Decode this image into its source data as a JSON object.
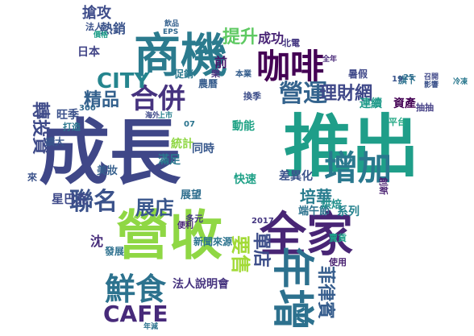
{
  "words": [
    {
      "text": "成長",
      "color": "#3f4788"
    },
    {
      "text": "推出",
      "color": "#1f9e89"
    },
    {
      "text": "商機",
      "color": "#2b7b8e"
    },
    {
      "text": "營收",
      "color": "#8fd744"
    },
    {
      "text": "全家",
      "color": "#482575"
    },
    {
      "text": "增加",
      "color": "#2a788e"
    },
    {
      "text": "年增",
      "color": "#2d718e"
    },
    {
      "text": "咖啡",
      "color": "#440154"
    },
    {
      "text": "聯名",
      "color": "#3b528b"
    },
    {
      "text": "鮮食",
      "color": "#2c728e"
    },
    {
      "text": "合併",
      "color": "#46337f"
    },
    {
      "text": "營運",
      "color": "#33638d"
    },
    {
      "text": "CITY",
      "color": "#25858e"
    },
    {
      "text": "CAFE",
      "color": "#472a7a"
    },
    {
      "text": "提升",
      "color": "#5ec962"
    },
    {
      "text": "理財網",
      "color": "#3f4889"
    },
    {
      "text": "精品",
      "color": "#34618d"
    },
    {
      "text": "展店",
      "color": "#39568c"
    },
    {
      "text": "轉投資",
      "color": "#3e4a89"
    },
    {
      "text": "單店",
      "color": "#3d4e8a"
    },
    {
      "text": "要售",
      "color": "#a2da37"
    },
    {
      "text": "菲律賓",
      "color": "#365d8d"
    },
    {
      "text": "搶攻",
      "color": "#3e4c8a"
    },
    {
      "text": "培華",
      "color": "#287c8e"
    },
    {
      "text": "成功",
      "color": "#482475"
    },
    {
      "text": "熱銷",
      "color": "#3a538b"
    },
    {
      "text": "星巴克",
      "color": "#3e4989"
    },
    {
      "text": "法人說明會",
      "color": "#46337f"
    },
    {
      "text": "新聞來源",
      "color": "#2c738e"
    },
    {
      "text": "資產",
      "color": "#440154"
    },
    {
      "text": "統計",
      "color": "#8fd744"
    },
    {
      "text": "同時",
      "color": "#38588c"
    },
    {
      "text": "快速",
      "color": "#1fa187"
    },
    {
      "text": "差異化",
      "color": "#3b528b"
    },
    {
      "text": "展望",
      "color": "#2e6e8e"
    },
    {
      "text": "動能",
      "color": "#20a386"
    },
    {
      "text": "連續",
      "color": "#1f9a8a"
    },
    {
      "text": "農曆",
      "color": "#365c8d"
    },
    {
      "text": "系列",
      "color": "#26828e"
    },
    {
      "text": "端午節",
      "color": "#2c728e"
    },
    {
      "text": "烘焙",
      "color": "#21908d"
    },
    {
      "text": "旺季",
      "color": "#3b518b"
    },
    {
      "text": "滿足",
      "color": "#2a778e"
    },
    {
      "text": "日本",
      "color": "#414487"
    },
    {
      "text": "前",
      "color": "#48186a"
    },
    {
      "text": "暑假",
      "color": "#3f4889"
    },
    {
      "text": "北電",
      "color": "#453882"
    },
    {
      "text": "美妝",
      "color": "#355f8d"
    },
    {
      "text": "抽抽",
      "color": "#433e85"
    },
    {
      "text": "旗下",
      "color": "#2c728e"
    },
    {
      "text": "促銷",
      "color": "#2a788e"
    },
    {
      "text": "法人",
      "color": "#3b528b"
    },
    {
      "text": "擴大",
      "color": "#39568c"
    },
    {
      "text": "多元",
      "color": "#453882"
    },
    {
      "text": "沈",
      "color": "#472d7b"
    },
    {
      "text": "賣貨",
      "color": "#1f9e89"
    },
    {
      "text": "發展",
      "color": "#2d708e"
    },
    {
      "text": "打造",
      "color": "#2a768e"
    },
    {
      "text": "便利",
      "color": "#482576"
    },
    {
      "text": "平台",
      "color": "#22a884"
    },
    {
      "text": "創新",
      "color": "#481f70"
    },
    {
      "text": "換季",
      "color": "#3d4e8a"
    },
    {
      "text": "300",
      "color": "#31688e"
    },
    {
      "text": "25",
      "color": "#2e6d8e"
    },
    {
      "text": "19",
      "color": "#3a548c"
    },
    {
      "text": "2017",
      "color": "#453781"
    },
    {
      "text": "07",
      "color": "#2b748e"
    },
    {
      "text": "飲品",
      "color": "#34608d"
    },
    {
      "text": "海外",
      "color": "#3e4989"
    },
    {
      "text": "冷凍",
      "color": "#2a788e"
    },
    {
      "text": "影響",
      "color": "#3b528b"
    },
    {
      "text": "價格",
      "color": "#1f9e89"
    },
    {
      "text": "全年",
      "color": "#482878"
    },
    {
      "text": "本業",
      "color": "#355e8d"
    },
    {
      "text": "樂",
      "color": "#46327e"
    },
    {
      "text": "EPS",
      "color": "#31688e"
    },
    {
      "text": "召開",
      "color": "#3f4788"
    },
    {
      "text": "年減",
      "color": "#2c728e"
    },
    {
      "text": "上市",
      "color": "#27808e"
    },
    {
      "text": "使用",
      "color": "#482071"
    },
    {
      "text": "來",
      "color": "#3b528b"
    }
  ]
}
